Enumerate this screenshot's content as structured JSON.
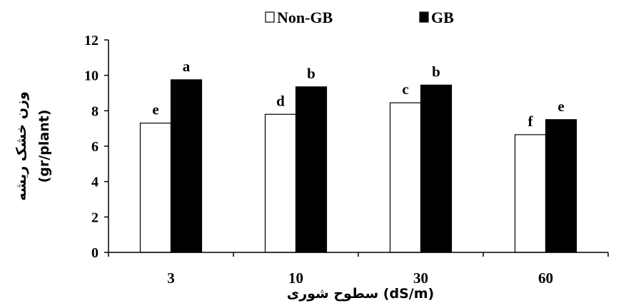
{
  "chart_data": {
    "type": "bar",
    "categories": [
      "3",
      "10",
      "30",
      "60"
    ],
    "series": [
      {
        "name": "Non-GB",
        "values": [
          7.3,
          7.8,
          8.45,
          6.65
        ],
        "labels": [
          "e",
          "d",
          "c",
          "f"
        ],
        "color": "#ffffff"
      },
      {
        "name": "GB",
        "values": [
          9.75,
          9.35,
          9.45,
          7.5
        ],
        "labels": [
          "a",
          "b",
          "b",
          "e"
        ],
        "color": "#000000"
      }
    ],
    "ylim": [
      0,
      12
    ],
    "yticks": [
      0,
      2,
      4,
      6,
      8,
      10,
      12
    ],
    "xlabel_line1": "(dS/m)",
    "xlabel_line2": "سطوح شوری",
    "ylabel_line1": "وزن خشک ریشه",
    "ylabel_line2": "(gr/plant)",
    "legend_position": "top-center",
    "grid": false
  }
}
